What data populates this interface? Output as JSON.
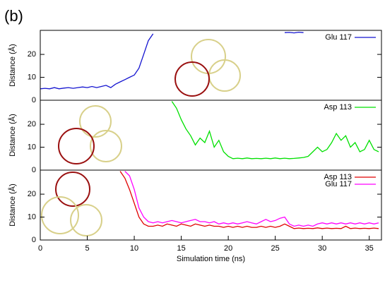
{
  "panel_label": "(b)",
  "chart_data": [
    {
      "type": "line",
      "ylabel": "Distance (Å)",
      "xlim": [
        0,
        36.3
      ],
      "ylim": [
        0,
        30.5
      ],
      "yticks": [
        0,
        10,
        20
      ],
      "legend": "upper right",
      "x": [
        0,
        0.5,
        1,
        1.5,
        2,
        2.5,
        3,
        3.5,
        4,
        4.5,
        5,
        5.5,
        6,
        6.5,
        7,
        7.5,
        8,
        8.5,
        9,
        9.5,
        10,
        10.5,
        11,
        11.5,
        12,
        12.5,
        13,
        13.5,
        14,
        14.5,
        15,
        15.5,
        16,
        16.5,
        17,
        17.5,
        18,
        18.5,
        19,
        19.5,
        20,
        20.5,
        21,
        21.5,
        22,
        22.5,
        23,
        23.5,
        24,
        24.5,
        25,
        25.5,
        26,
        26.5,
        27,
        27.5,
        28,
        28.5,
        29,
        29.5,
        30,
        30.5,
        31,
        31.5,
        32,
        32.5,
        33,
        33.5,
        34,
        34.5,
        35,
        35.5,
        36
      ],
      "series": [
        {
          "name": "Glu 117",
          "color": "#1414d0",
          "values": [
            5,
            5.2,
            5,
            5.5,
            5,
            5.3,
            5.5,
            5.2,
            5.5,
            5.8,
            5.5,
            6,
            5.5,
            6,
            6.5,
            5.5,
            7,
            8,
            9,
            10,
            11,
            14,
            20,
            26,
            29,
            null,
            null,
            null,
            null,
            null,
            null,
            null,
            null,
            null,
            null,
            null,
            null,
            null,
            null,
            null,
            null,
            null,
            null,
            null,
            null,
            null,
            null,
            null,
            null,
            null,
            null,
            null,
            29.5,
            29.6,
            29.4,
            29.7,
            29.5,
            null,
            null,
            null,
            null,
            null,
            null,
            null,
            null,
            null,
            null,
            null,
            null,
            null,
            null,
            null,
            null
          ]
        }
      ]
    },
    {
      "type": "line",
      "ylabel": "Distance (Å)",
      "xlim": [
        0,
        36.3
      ],
      "ylim": [
        0,
        30.5
      ],
      "yticks": [
        0,
        10,
        20
      ],
      "legend": "upper right",
      "x": [
        0,
        0.5,
        1,
        1.5,
        2,
        2.5,
        3,
        3.5,
        4,
        4.5,
        5,
        5.5,
        6,
        6.5,
        7,
        7.5,
        8,
        8.5,
        9,
        9.5,
        10,
        10.5,
        11,
        11.5,
        12,
        12.5,
        13,
        13.5,
        14,
        14.5,
        15,
        15.5,
        16,
        16.5,
        17,
        17.5,
        18,
        18.5,
        19,
        19.5,
        20,
        20.5,
        21,
        21.5,
        22,
        22.5,
        23,
        23.5,
        24,
        24.5,
        25,
        25.5,
        26,
        26.5,
        27,
        27.5,
        28,
        28.5,
        29,
        29.5,
        30,
        30.5,
        31,
        31.5,
        32,
        32.5,
        33,
        33.5,
        34,
        34.5,
        35,
        35.5,
        36
      ],
      "series": [
        {
          "name": "Asp 113",
          "color": "#00e000",
          "values": [
            null,
            null,
            null,
            null,
            null,
            null,
            null,
            null,
            null,
            null,
            null,
            null,
            null,
            null,
            null,
            null,
            null,
            null,
            null,
            null,
            null,
            null,
            null,
            null,
            null,
            null,
            null,
            null,
            30,
            27,
            22,
            18,
            15,
            11,
            14,
            12,
            17,
            10,
            13,
            8,
            6,
            5,
            5.2,
            5,
            5.3,
            5,
            5.1,
            5,
            5.2,
            5,
            5.3,
            5,
            5.2,
            5,
            5.1,
            5.3,
            5.5,
            6,
            8,
            10,
            8,
            9,
            12,
            16,
            13,
            15,
            10,
            12,
            8,
            9,
            13,
            9,
            8
          ]
        }
      ]
    },
    {
      "type": "line",
      "ylabel": "Distance (Å)",
      "xlabel": "Simulation time (ns)",
      "xlim": [
        0,
        36.3
      ],
      "ylim": [
        0,
        30.5
      ],
      "yticks": [
        0,
        10,
        20
      ],
      "xticks": [
        0,
        5,
        10,
        15,
        20,
        25,
        30,
        35
      ],
      "legend": "upper right",
      "x": [
        0,
        0.5,
        1,
        1.5,
        2,
        2.5,
        3,
        3.5,
        4,
        4.5,
        5,
        5.5,
        6,
        6.5,
        7,
        7.5,
        8,
        8.5,
        9,
        9.5,
        10,
        10.5,
        11,
        11.5,
        12,
        12.5,
        13,
        13.5,
        14,
        14.5,
        15,
        15.5,
        16,
        16.5,
        17,
        17.5,
        18,
        18.5,
        19,
        19.5,
        20,
        20.5,
        21,
        21.5,
        22,
        22.5,
        23,
        23.5,
        24,
        24.5,
        25,
        25.5,
        26,
        26.5,
        27,
        27.5,
        28,
        28.5,
        29,
        29.5,
        30,
        30.5,
        31,
        31.5,
        32,
        32.5,
        33,
        33.5,
        34,
        34.5,
        35,
        35.5,
        36
      ],
      "series": [
        {
          "name": "Asp 113",
          "color": "#e00000",
          "values": [
            null,
            null,
            null,
            null,
            null,
            null,
            null,
            null,
            null,
            null,
            null,
            null,
            null,
            null,
            null,
            null,
            null,
            30,
            27,
            22,
            16,
            10,
            7,
            6,
            6,
            6.5,
            6,
            7,
            6.5,
            6,
            7,
            6.5,
            6,
            7,
            6.5,
            6,
            6.5,
            6,
            6,
            5.5,
            6,
            5.5,
            6,
            5.5,
            6,
            5.5,
            5.5,
            6,
            5.5,
            6,
            5.5,
            6,
            7,
            6,
            5,
            5.2,
            5,
            5.1,
            5,
            5.3,
            5,
            5.2,
            5,
            5.1,
            5,
            6,
            5,
            5.2,
            5,
            5.1,
            5,
            5.2,
            5
          ]
        },
        {
          "name": "Glu 117",
          "color": "#ff00ff",
          "values": [
            null,
            null,
            null,
            null,
            null,
            null,
            null,
            null,
            null,
            null,
            null,
            null,
            null,
            null,
            null,
            null,
            null,
            null,
            30,
            28,
            22,
            14,
            10,
            8,
            7.5,
            8,
            7.5,
            8,
            8.5,
            8,
            7.5,
            8,
            8.5,
            9,
            8,
            8,
            7.5,
            8,
            7,
            7.5,
            7,
            7.5,
            7,
            7.5,
            8,
            7.5,
            7,
            8,
            9,
            8,
            8.5,
            9.5,
            10,
            7,
            6,
            6.5,
            6,
            6.5,
            6,
            7,
            7.5,
            7,
            7.5,
            7,
            7.5,
            7,
            7.5,
            7,
            7.5,
            7,
            7.5,
            7,
            7.5
          ]
        }
      ]
    }
  ]
}
